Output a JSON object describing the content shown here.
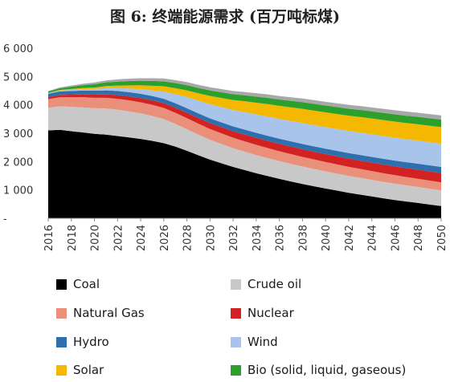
{
  "chart_data": {
    "type": "area",
    "stacked": true,
    "title": "图 6: 终端能源需求 (百万吨标煤)",
    "xlabel": "",
    "ylabel": "",
    "ylim": [
      0,
      6000
    ],
    "y_ticks": [
      "-",
      "1 000",
      "2 000",
      "3 000",
      "4 000",
      "5 000",
      "6 000"
    ],
    "x_ticks": [
      "2016",
      "2018",
      "2020",
      "2022",
      "2024",
      "2026",
      "2028",
      "2030",
      "2032",
      "2034",
      "2036",
      "2038",
      "2040",
      "2042",
      "2044",
      "2046",
      "2048",
      "2050"
    ],
    "x": [
      2016,
      2017,
      2018,
      2019,
      2020,
      2021,
      2022,
      2023,
      2024,
      2025,
      2026,
      2027,
      2028,
      2029,
      2030,
      2031,
      2032,
      2033,
      2034,
      2035,
      2036,
      2037,
      2038,
      2039,
      2040,
      2041,
      2042,
      2043,
      2044,
      2045,
      2046,
      2047,
      2048,
      2049,
      2050
    ],
    "grid": false,
    "legend_position": "bottom",
    "series": [
      {
        "name": "Coal",
        "color": "#000000",
        "values": [
          3100,
          3120,
          3070,
          3030,
          2980,
          2950,
          2900,
          2850,
          2800,
          2730,
          2650,
          2530,
          2380,
          2220,
          2070,
          1940,
          1810,
          1700,
          1590,
          1490,
          1390,
          1300,
          1210,
          1130,
          1050,
          975,
          900,
          835,
          770,
          705,
          645,
          590,
          540,
          485,
          430
        ]
      },
      {
        "name": "Crude oil",
        "color": "#c8c8c8",
        "values": [
          800,
          830,
          860,
          880,
          900,
          920,
          930,
          920,
          900,
          880,
          850,
          800,
          760,
          730,
          700,
          680,
          660,
          650,
          640,
          630,
          625,
          620,
          615,
          610,
          605,
          600,
          595,
          590,
          585,
          580,
          575,
          570,
          565,
          560,
          555
        ]
      },
      {
        "name": "Natural Gas",
        "color": "#ea907a",
        "values": [
          300,
          320,
          340,
          360,
          370,
          380,
          385,
          390,
          390,
          390,
          390,
          390,
          390,
          385,
          380,
          375,
          370,
          365,
          360,
          355,
          350,
          345,
          340,
          335,
          330,
          325,
          320,
          315,
          310,
          305,
          300,
          295,
          290,
          285,
          280
        ]
      },
      {
        "name": "Nuclear",
        "color": "#d32222",
        "values": [
          70,
          80,
          90,
          100,
          110,
          120,
          130,
          140,
          150,
          160,
          170,
          180,
          190,
          200,
          210,
          220,
          230,
          240,
          250,
          255,
          260,
          265,
          270,
          275,
          280,
          285,
          290,
          295,
          300,
          305,
          310,
          315,
          320,
          325,
          330
        ]
      },
      {
        "name": "Hydro",
        "color": "#2e6fad",
        "values": [
          120,
          125,
          130,
          135,
          140,
          142,
          145,
          148,
          150,
          152,
          155,
          158,
          160,
          162,
          165,
          167,
          170,
          172,
          175,
          177,
          180,
          182,
          185,
          187,
          190,
          192,
          195,
          197,
          200,
          202,
          205,
          207,
          210,
          212,
          215
        ]
      },
      {
        "name": "Wind",
        "color": "#a9c4ea",
        "values": [
          20,
          30,
          40,
          50,
          60,
          80,
          100,
          130,
          160,
          200,
          250,
          320,
          400,
          450,
          500,
          540,
          580,
          620,
          650,
          680,
          700,
          720,
          740,
          750,
          760,
          770,
          780,
          790,
          800,
          805,
          810,
          812,
          815,
          818,
          820
        ]
      },
      {
        "name": "Solar",
        "color": "#f5b800",
        "values": [
          10,
          20,
          30,
          40,
          50,
          70,
          90,
          110,
          140,
          160,
          190,
          210,
          230,
          260,
          290,
          320,
          350,
          380,
          410,
          440,
          460,
          480,
          500,
          510,
          520,
          530,
          540,
          550,
          555,
          560,
          565,
          570,
          575,
          580,
          585
        ]
      },
      {
        "name": "Bio (solid, liquid, gaseous)",
        "color": "#2ca02c",
        "values": [
          50,
          60,
          80,
          100,
          120,
          130,
          140,
          150,
          160,
          170,
          175,
          180,
          185,
          190,
          195,
          200,
          205,
          210,
          215,
          220,
          225,
          230,
          235,
          240,
          240,
          245,
          245,
          250,
          250,
          255,
          255,
          258,
          260,
          262,
          265
        ]
      },
      {
        "name": "",
        "color": "#a8a8a8",
        "values": [
          20,
          30,
          40,
          50,
          60,
          70,
          80,
          85,
          90,
          95,
          100,
          105,
          108,
          110,
          112,
          114,
          116,
          118,
          120,
          122,
          124,
          126,
          128,
          130,
          132,
          134,
          136,
          138,
          140,
          142,
          144,
          146,
          148,
          150,
          150
        ]
      }
    ]
  }
}
